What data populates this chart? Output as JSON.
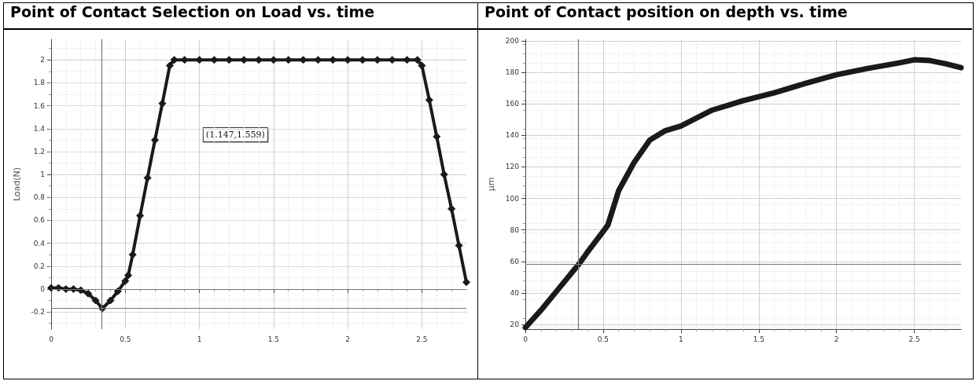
{
  "chart_data": [
    {
      "type": "line",
      "title": "Point of Contact Selection on Load vs. time",
      "ylabel": "Load(N)",
      "marker": "diamond",
      "line_style": "solid",
      "grid": true,
      "x": [
        0,
        0.05,
        0.1,
        0.15,
        0.2,
        0.25,
        0.3,
        0.345,
        0.4,
        0.45,
        0.5,
        0.52,
        0.55,
        0.6,
        0.65,
        0.7,
        0.75,
        0.8,
        0.83,
        0.9,
        1.0,
        1.1,
        1.2,
        1.3,
        1.4,
        1.5,
        1.6,
        1.7,
        1.8,
        1.9,
        2.0,
        2.1,
        2.2,
        2.3,
        2.4,
        2.47,
        2.5,
        2.55,
        2.6,
        2.65,
        2.7,
        2.75,
        2.8
      ],
      "series": [
        {
          "color": "#1a1a1a",
          "values": [
            0.01,
            0.01,
            0.0,
            0.0,
            -0.01,
            -0.04,
            -0.1,
            -0.17,
            -0.1,
            -0.02,
            0.07,
            0.12,
            0.3,
            0.64,
            0.97,
            1.3,
            1.62,
            1.95,
            2.0,
            2.0,
            2.0,
            2.0,
            2.0,
            2.0,
            2.0,
            2.0,
            2.0,
            2.0,
            2.0,
            2.0,
            2.0,
            2.0,
            2.0,
            2.0,
            2.0,
            2.0,
            1.95,
            1.65,
            1.33,
            1.0,
            0.7,
            0.38,
            0.06
          ]
        }
      ],
      "xlim": [
        0,
        2.8
      ],
      "xticks": [
        0,
        0.5,
        1,
        1.5,
        2,
        2.5
      ],
      "ylim": [
        -0.35,
        2.18
      ],
      "yticks": [
        -0.2,
        0,
        0.2,
        0.4,
        0.6,
        0.8,
        1,
        1.2,
        1.4,
        1.6,
        1.8,
        2
      ],
      "ref_lines": [
        {
          "axis": "x",
          "value": 0.345,
          "color": "#777777"
        },
        {
          "axis": "y",
          "value": 0,
          "color": "#777777"
        },
        {
          "axis": "y",
          "value": -0.17,
          "color": "#777777"
        }
      ],
      "annotations": [
        "(1.147,1.559)"
      ]
    },
    {
      "type": "line",
      "title": "Point of Contact position on depth vs. time",
      "ylabel": "µm",
      "marker": "none",
      "line_style": "solid",
      "grid": true,
      "x": [
        0,
        0.1,
        0.2,
        0.3,
        0.345,
        0.4,
        0.5,
        0.53,
        0.6,
        0.7,
        0.8,
        0.9,
        1.0,
        1.2,
        1.4,
        1.6,
        1.8,
        2.0,
        2.2,
        2.4,
        2.5,
        2.6,
        2.7,
        2.8
      ],
      "series": [
        {
          "color": "#1a1a1a",
          "values": [
            18,
            29,
            41,
            53,
            58.4,
            66,
            79,
            83,
            105,
            123,
            137,
            143,
            146,
            156,
            162,
            167,
            173,
            178.5,
            182.5,
            186,
            188,
            187.5,
            185.5,
            183
          ]
        }
      ],
      "xlim": [
        0,
        2.8
      ],
      "xticks": [
        0,
        0.5,
        1,
        1.5,
        2,
        2.5
      ],
      "ylim": [
        17,
        201
      ],
      "yticks": [
        20,
        40,
        60,
        80,
        100,
        120,
        140,
        160,
        180,
        200
      ],
      "ref_lines": [
        {
          "axis": "x",
          "value": 0.342,
          "color": "#777777"
        },
        {
          "axis": "y",
          "value": 58.4,
          "color": "#777777"
        }
      ]
    }
  ]
}
